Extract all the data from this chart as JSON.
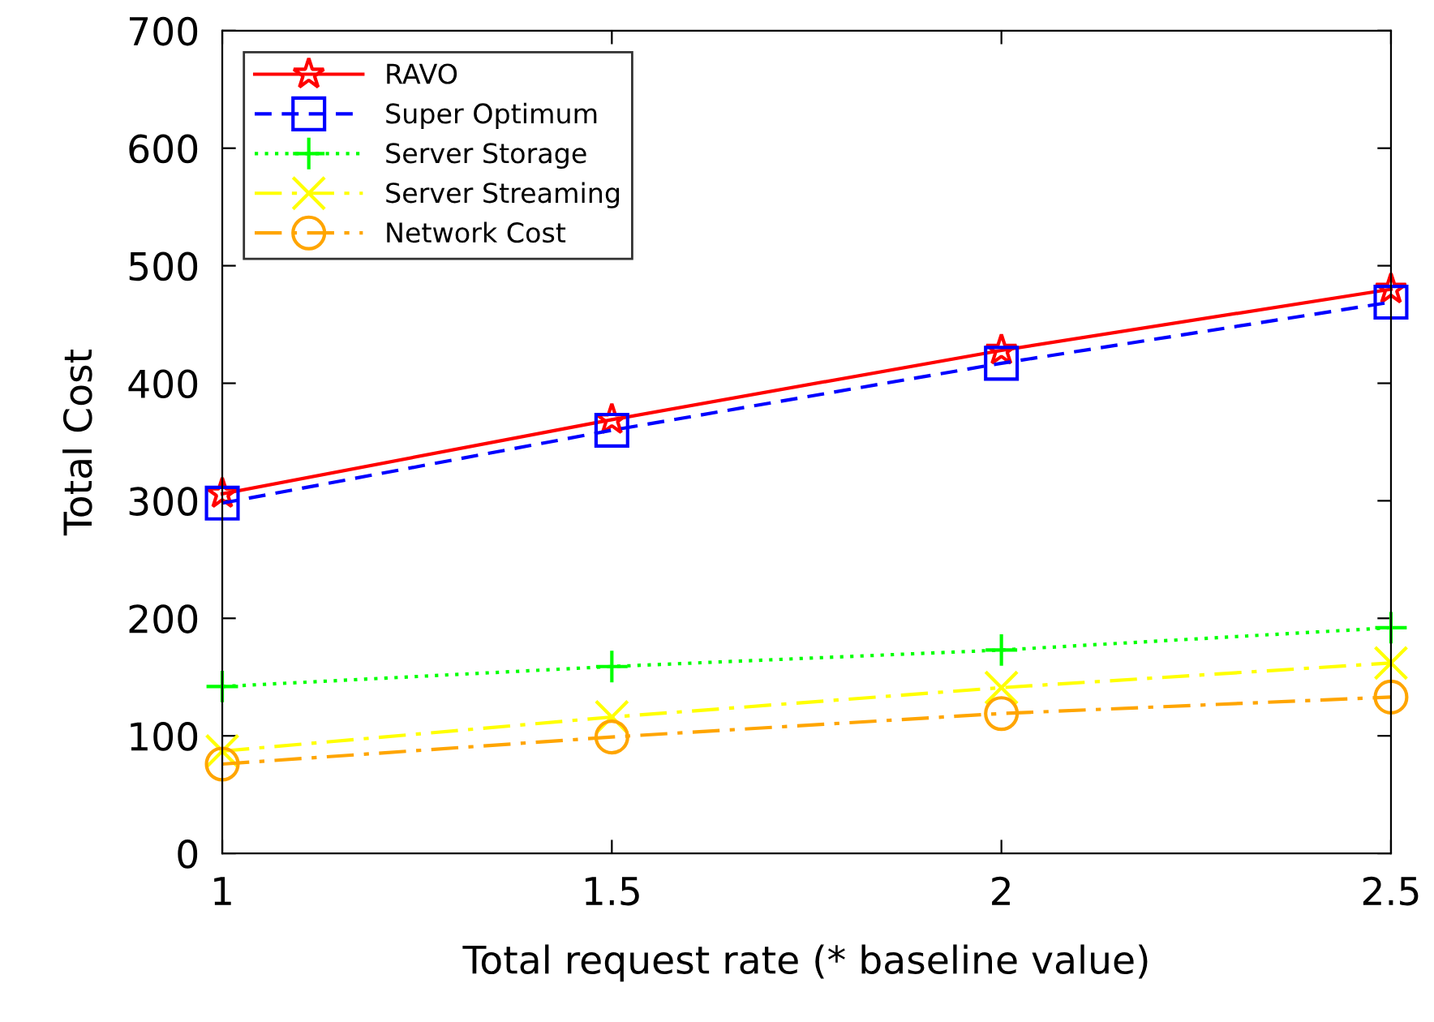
{
  "chart_data": {
    "type": "line",
    "xlabel": "Total request rate (* baseline value)",
    "ylabel": "Total Cost",
    "x": [
      1,
      1.5,
      2,
      2.5
    ],
    "series": [
      {
        "name": "RAVO",
        "color": "#ff0000",
        "marker": "star",
        "line_style": "solid",
        "values": [
          306,
          369,
          428,
          480
        ]
      },
      {
        "name": "Super Optimum",
        "color": "#0000ff",
        "marker": "square",
        "line_style": "dashed",
        "values": [
          298,
          360,
          417,
          469
        ]
      },
      {
        "name": "Server Storage",
        "color": "#00ff00",
        "marker": "cross",
        "line_style": "dotted",
        "values": [
          142,
          159,
          173,
          192
        ]
      },
      {
        "name": "Server Streaming",
        "color": "#ffff00",
        "marker": "x",
        "line_style": "dashdot",
        "values": [
          87,
          116,
          141,
          162
        ]
      },
      {
        "name": "Network Cost",
        "color": "#ffa500",
        "marker": "circle",
        "line_style": "dashdot",
        "values": [
          76,
          99,
          119,
          133
        ]
      }
    ],
    "xlim": [
      1,
      2.5
    ],
    "xticks": [
      1,
      1.5,
      2,
      2.5
    ],
    "ylim": [
      0,
      700
    ],
    "yticks": [
      0,
      100,
      200,
      300,
      400,
      500,
      600,
      700
    ],
    "grid": false,
    "legend": "top left"
  }
}
